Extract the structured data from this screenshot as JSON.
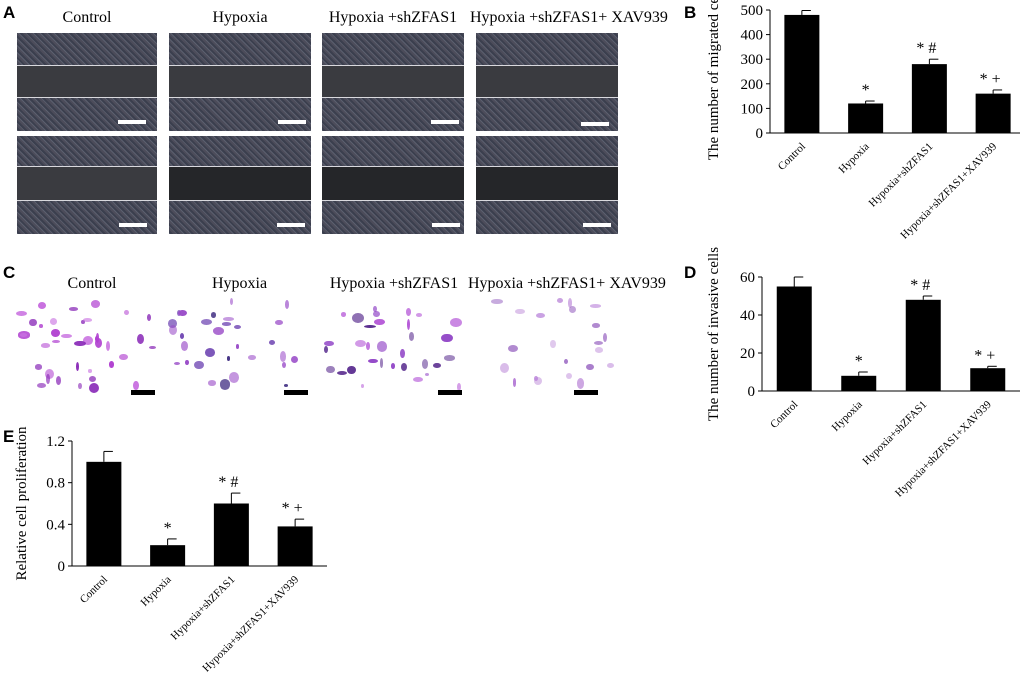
{
  "panels": {
    "A": "A",
    "B": "B",
    "C": "C",
    "D": "D",
    "E": "E"
  },
  "image_columns": [
    "Control",
    "Hypoxia",
    "Hypoxia +shZFAS1",
    "Hypoxia +shZFAS1+ XAV939"
  ],
  "chart_data": [
    {
      "panel": "B",
      "type": "bar",
      "categories": [
        "Control",
        "Hypoxia",
        "Hypoxia+shZFAS1",
        "Hypoxia+shZFAS1+XAV939"
      ],
      "values": [
        480,
        120,
        280,
        160
      ],
      "errors": [
        18,
        10,
        20,
        15
      ],
      "annotations": [
        "",
        "*",
        "* #",
        "* +"
      ],
      "ylabel": "The number of migrated cells",
      "ylim": [
        0,
        500
      ],
      "yticks": [
        0,
        100,
        200,
        300,
        400,
        500
      ],
      "bar_color": "#000000"
    },
    {
      "panel": "D",
      "type": "bar",
      "categories": [
        "Control",
        "Hypoxia",
        "Hypoxia+shZFAS1",
        "Hypoxia+shZFAS1+XAV939"
      ],
      "values": [
        55,
        8,
        48,
        12
      ],
      "errors": [
        5,
        2,
        2,
        1
      ],
      "annotations": [
        "",
        "*",
        "* #",
        "* +"
      ],
      "ylabel": "The number of invasive cells",
      "ylim": [
        0,
        60
      ],
      "yticks": [
        0,
        20,
        40,
        60
      ],
      "bar_color": "#000000"
    },
    {
      "panel": "E",
      "type": "bar",
      "categories": [
        "Control",
        "Hypoxia",
        "Hypoxia+shZFAS1",
        "Hypoxia+shZFAS1+XAV939"
      ],
      "values": [
        1.0,
        0.2,
        0.6,
        0.38
      ],
      "errors": [
        0.1,
        0.06,
        0.1,
        0.07
      ],
      "annotations": [
        "",
        "*",
        "* #",
        "* +"
      ],
      "ylabel": "Relative cell proliferation",
      "ylim": [
        0,
        1.2
      ],
      "yticks": [
        "0",
        "0.4",
        "0.8",
        "1.2"
      ],
      "bar_color": "#000000"
    }
  ]
}
